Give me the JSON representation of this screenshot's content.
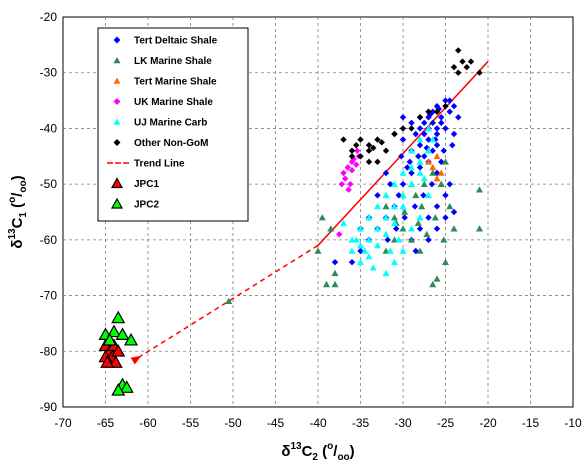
{
  "chart_data": {
    "type": "scatter",
    "title": "",
    "xlabel": {
      "main": "δ",
      "sup": "13",
      "sym": "C",
      "sub": "2",
      "unit_open": " (",
      "unit_sup": "o",
      "unit_slash": "/",
      "unit_sub": "oo",
      "unit_close": ")"
    },
    "ylabel": {
      "main": "δ",
      "sup": "13",
      "sym": "C",
      "sub": "1",
      "unit_open": " (",
      "unit_sup": "o",
      "unit_slash": "/",
      "unit_sub": "oo",
      "unit_close": ")"
    },
    "xlim": [
      -70,
      -10
    ],
    "ylim": [
      -90,
      -20
    ],
    "xticks": [
      -70,
      -65,
      -60,
      -55,
      -50,
      -45,
      -40,
      -35,
      -30,
      -25,
      -20,
      -15,
      -10
    ],
    "yticks": [
      -20,
      -30,
      -40,
      -50,
      -60,
      -70,
      -80,
      -90
    ],
    "xtick_labels": [
      "-70",
      "-65",
      "-60",
      "-55",
      "-50",
      "-45",
      "-40",
      "-35",
      "-30",
      "-25",
      "-20",
      "-15",
      "-10"
    ],
    "ytick_labels": [
      "-20",
      "-30",
      "-40",
      "-50",
      "-60",
      "-70",
      "-80",
      "-90"
    ],
    "grid": true,
    "legend_position": "top-left",
    "series": [
      {
        "name": "Tert Deltaic Shale",
        "marker": "diamond",
        "color": "#0000ff",
        "points": [
          [
            -26,
            -36
          ],
          [
            -25,
            -35
          ],
          [
            -24.5,
            -35
          ],
          [
            -24,
            -36
          ],
          [
            -26.5,
            -37
          ],
          [
            -27,
            -38
          ],
          [
            -27.5,
            -39
          ],
          [
            -28,
            -40
          ],
          [
            -28.5,
            -41
          ],
          [
            -27,
            -40
          ],
          [
            -26,
            -40
          ],
          [
            -25.5,
            -39
          ],
          [
            -26,
            -41
          ],
          [
            -27,
            -42
          ],
          [
            -28,
            -43
          ],
          [
            -29,
            -44
          ],
          [
            -30,
            -42
          ],
          [
            -31,
            -41
          ],
          [
            -27.5,
            -45
          ],
          [
            -26.5,
            -44
          ],
          [
            -26,
            -43
          ],
          [
            -27,
            -46
          ],
          [
            -28,
            -47
          ],
          [
            -29,
            -48
          ],
          [
            -30,
            -50
          ],
          [
            -30.5,
            -52
          ],
          [
            -31,
            -54
          ],
          [
            -32,
            -56
          ],
          [
            -33,
            -58
          ],
          [
            -34,
            -60
          ],
          [
            -35,
            -62
          ],
          [
            -36,
            -64
          ],
          [
            -38,
            -64
          ],
          [
            -26,
            -48
          ],
          [
            -25.5,
            -46
          ],
          [
            -24.5,
            -50
          ],
          [
            -25,
            -52
          ],
          [
            -26,
            -54
          ],
          [
            -27,
            -56
          ],
          [
            -28,
            -58
          ],
          [
            -29,
            -60
          ],
          [
            -28.5,
            -62
          ],
          [
            -29.5,
            -47
          ],
          [
            -29,
            -39
          ],
          [
            -30,
            -38
          ],
          [
            -25,
            -40
          ],
          [
            -24,
            -41
          ],
          [
            -23.5,
            -38
          ],
          [
            -24.5,
            -37
          ],
          [
            -25.5,
            -38
          ],
          [
            -26.5,
            -39
          ],
          [
            -27.5,
            -41
          ],
          [
            -28,
            -38
          ],
          [
            -26.8,
            -37.5
          ],
          [
            -25.8,
            -36.5
          ],
          [
            -26.2,
            -42
          ],
          [
            -27.2,
            -43.5
          ],
          [
            -28.2,
            -45
          ],
          [
            -29.2,
            -46
          ],
          [
            -30.2,
            -45
          ],
          [
            -25.2,
            -44
          ],
          [
            -24.2,
            -43
          ],
          [
            -26.6,
            -50
          ],
          [
            -27.6,
            -52
          ],
          [
            -28.6,
            -54
          ],
          [
            -31.5,
            -50
          ],
          [
            -32,
            -48
          ],
          [
            -33,
            -52
          ],
          [
            -34,
            -56
          ],
          [
            -35,
            -58
          ],
          [
            -29.8,
            -56
          ],
          [
            -30.8,
            -58
          ],
          [
            -31.8,
            -60
          ],
          [
            -27,
            -60
          ],
          [
            -26,
            -58
          ],
          [
            -25,
            -56
          ],
          [
            -24,
            -55
          ]
        ]
      },
      {
        "name": "LK Marine Shale",
        "marker": "triangle",
        "color": "#2e8b57",
        "points": [
          [
            -38,
            -68
          ],
          [
            -39,
            -68
          ],
          [
            -38,
            -66
          ],
          [
            -39.5,
            -56
          ],
          [
            -40,
            -62
          ],
          [
            -38.5,
            -58
          ],
          [
            -50.5,
            -71
          ],
          [
            -21,
            -51
          ],
          [
            -21,
            -58
          ],
          [
            -25,
            -64
          ],
          [
            -26,
            -67
          ],
          [
            -26.5,
            -68
          ],
          [
            -28,
            -62
          ],
          [
            -29,
            -60
          ],
          [
            -30,
            -58
          ],
          [
            -31,
            -56
          ],
          [
            -32,
            -54
          ],
          [
            -28.5,
            -52
          ],
          [
            -27.5,
            -50
          ],
          [
            -26.5,
            -48
          ],
          [
            -27,
            -44
          ],
          [
            -28,
            -46
          ],
          [
            -29,
            -50
          ],
          [
            -30,
            -52
          ],
          [
            -31,
            -60
          ],
          [
            -32,
            -62
          ],
          [
            -25.5,
            -50
          ],
          [
            -25,
            -46
          ],
          [
            -24.5,
            -54
          ],
          [
            -24,
            -58
          ],
          [
            -27.8,
            -54
          ],
          [
            -29.8,
            -55
          ],
          [
            -30.8,
            -57
          ],
          [
            -26.2,
            -56
          ],
          [
            -25.2,
            -60
          ],
          [
            -28.2,
            -57
          ],
          [
            -27.2,
            -59
          ]
        ]
      },
      {
        "name": "Tert Marine Shale",
        "marker": "triangle",
        "color": "#ff6a00",
        "points": [
          [
            -26,
            -45
          ],
          [
            -26.5,
            -47
          ],
          [
            -27,
            -46
          ],
          [
            -25.5,
            -48
          ],
          [
            -26,
            -49
          ]
        ]
      },
      {
        "name": "UK Marine Shale",
        "marker": "diamond",
        "color": "#ff00ff",
        "points": [
          [
            -36,
            -46
          ],
          [
            -36.5,
            -47
          ],
          [
            -37,
            -48
          ],
          [
            -36.8,
            -49
          ],
          [
            -36.2,
            -50
          ],
          [
            -36,
            -47.5
          ],
          [
            -35.5,
            -46.5
          ],
          [
            -35.8,
            -45.5
          ],
          [
            -37.2,
            -50
          ],
          [
            -36.4,
            -51
          ],
          [
            -37.5,
            -59
          ],
          [
            -35.2,
            -45
          ],
          [
            -35.4,
            -44
          ]
        ]
      },
      {
        "name": "UJ Marine Carb",
        "marker": "triangle",
        "color": "#00ffff",
        "points": [
          [
            -30,
            -52
          ],
          [
            -31,
            -54
          ],
          [
            -32,
            -56
          ],
          [
            -33,
            -58
          ],
          [
            -34,
            -60
          ],
          [
            -35,
            -61
          ],
          [
            -36,
            -62
          ],
          [
            -35,
            -58
          ],
          [
            -34,
            -56
          ],
          [
            -33,
            -54
          ],
          [
            -32,
            -52
          ],
          [
            -31,
            -50
          ],
          [
            -30,
            -48
          ],
          [
            -29,
            -47
          ],
          [
            -28,
            -46
          ],
          [
            -27,
            -44
          ],
          [
            -28,
            -48
          ],
          [
            -29,
            -50
          ],
          [
            -30,
            -54
          ],
          [
            -31,
            -57
          ],
          [
            -32,
            -59
          ],
          [
            -33,
            -61
          ],
          [
            -34,
            -63
          ],
          [
            -35,
            -64
          ],
          [
            -36,
            -60
          ],
          [
            -37,
            -57
          ],
          [
            -30,
            -62
          ],
          [
            -31,
            -64
          ],
          [
            -32,
            -66
          ],
          [
            -29,
            -58
          ],
          [
            -28,
            -56
          ],
          [
            -27,
            -52
          ],
          [
            -27.5,
            -49
          ],
          [
            -26.5,
            -42
          ],
          [
            -27,
            -40
          ],
          [
            -28,
            -42
          ],
          [
            -29,
            -44
          ],
          [
            -33.5,
            -65
          ],
          [
            -34.5,
            -62
          ],
          [
            -35.5,
            -60
          ],
          [
            -30.5,
            -60
          ],
          [
            -31.5,
            -62
          ]
        ]
      },
      {
        "name": "Other Non-GoM",
        "marker": "diamond",
        "color": "#000000",
        "points": [
          [
            -34,
            -43
          ],
          [
            -35,
            -42
          ],
          [
            -36,
            -44
          ],
          [
            -37,
            -42
          ],
          [
            -33,
            -42
          ],
          [
            -34,
            -44
          ],
          [
            -35,
            -45
          ],
          [
            -32,
            -44
          ],
          [
            -31,
            -41
          ],
          [
            -30,
            -40
          ],
          [
            -29,
            -40
          ],
          [
            -28,
            -38
          ],
          [
            -27,
            -37
          ],
          [
            -26,
            -37
          ],
          [
            -25,
            -36
          ],
          [
            -33,
            -46
          ],
          [
            -34,
            -46
          ],
          [
            -36,
            -45
          ],
          [
            -24,
            -29
          ],
          [
            -23.5,
            -30
          ],
          [
            -23,
            -28
          ],
          [
            -22.5,
            -29
          ],
          [
            -23.5,
            -26
          ],
          [
            -22,
            -28
          ],
          [
            -21,
            -30
          ],
          [
            -33.5,
            -43.5
          ],
          [
            -32.5,
            -42.5
          ],
          [
            -35.5,
            -43
          ]
        ]
      },
      {
        "name": "JPC1",
        "marker": "triangle-outline",
        "color": "#ff0000",
        "points": [
          [
            -65,
            -79
          ],
          [
            -64.5,
            -80
          ],
          [
            -64,
            -79
          ],
          [
            -64.2,
            -81
          ],
          [
            -63.5,
            -80
          ],
          [
            -65,
            -81
          ],
          [
            -63.8,
            -82
          ],
          [
            -64.8,
            -82
          ]
        ]
      },
      {
        "name": "JPC2",
        "marker": "triangle-outline",
        "color": "#00ff00",
        "points": [
          [
            -65,
            -77
          ],
          [
            -64,
            -76.5
          ],
          [
            -63,
            -77
          ],
          [
            -62,
            -78
          ],
          [
            -63.5,
            -74
          ],
          [
            -63,
            -86
          ],
          [
            -62.5,
            -86.5
          ],
          [
            -63.5,
            -87
          ],
          [
            -64.5,
            -78
          ]
        ]
      }
    ],
    "trend_line": {
      "name": "Trend Line",
      "color": "#ff0000",
      "solid": [
        [
          -20,
          -28
        ],
        [
          -40,
          -61
        ]
      ],
      "dashed": [
        [
          -40,
          -61
        ],
        [
          -61,
          -81
        ]
      ]
    }
  }
}
